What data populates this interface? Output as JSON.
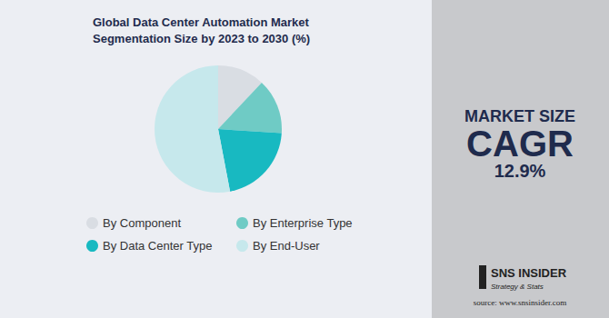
{
  "chart_data": {
    "type": "pie",
    "title": "Global Data Center Automation Market\nSegmentation Size by 2023 to 2030 (%)",
    "categories": [
      "By Component",
      "By Enterprise Type",
      "By Data Center Type",
      "By End-User"
    ],
    "values": [
      12,
      14,
      21,
      53
    ],
    "colors": [
      "#d9dde3",
      "#6fcbc5",
      "#18b9c1",
      "#c6e8ec"
    ],
    "legend": "bottom",
    "data_labels": false,
    "annotations": {
      "market_size": "MARKET SIZE",
      "cagr_label": "CAGR",
      "cagr_value": "12.9%",
      "brand": "SNS INSIDER",
      "tagline": "Strategy & Stats",
      "source": "source: www.snsinsider.com"
    }
  }
}
